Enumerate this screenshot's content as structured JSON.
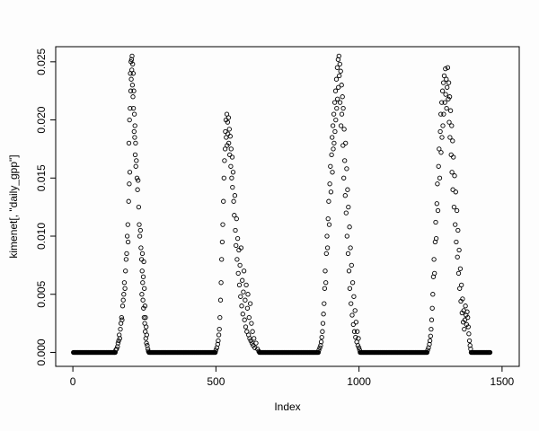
{
  "chart_data": {
    "type": "scatter",
    "title": "",
    "xlabel": "Index",
    "ylabel": "kimenet[, \"daily_gpp\"]",
    "xlim": [
      -60,
      1560
    ],
    "ylim": [
      -0.0012,
      0.0263
    ],
    "x_ticks": [
      0,
      500,
      1000,
      1500
    ],
    "x_tick_labels": [
      "0",
      "500",
      "1000",
      "1500"
    ],
    "y_ticks": [
      0,
      0.005,
      0.01,
      0.015,
      0.02,
      0.025
    ],
    "y_tick_labels": [
      "0.000",
      "0.005",
      "0.010",
      "0.015",
      "0.020",
      "0.025"
    ],
    "marker": "open-circle",
    "marker_color": "#000000",
    "grid": false,
    "legend": "none",
    "zero_runs": [
      {
        "from": 2,
        "to": 148,
        "step": 2,
        "y": 0
      },
      {
        "from": 266,
        "to": 498,
        "step": 2,
        "y": 0
      },
      {
        "from": 652,
        "to": 858,
        "step": 2,
        "y": 0
      },
      {
        "from": 1004,
        "to": 1238,
        "step": 2,
        "y": 0
      },
      {
        "from": 1392,
        "to": 1458,
        "step": 2,
        "y": 0
      }
    ],
    "points": [
      [
        150,
        0.0002
      ],
      [
        153,
        0.0003
      ],
      [
        156,
        0.0005
      ],
      [
        158,
        0.0008
      ],
      [
        160,
        0.001
      ],
      [
        162,
        0.0015
      ],
      [
        164,
        0.0012
      ],
      [
        166,
        0.002
      ],
      [
        168,
        0.0025
      ],
      [
        170,
        0.003
      ],
      [
        172,
        0.0028
      ],
      [
        174,
        0.004
      ],
      [
        176,
        0.0045
      ],
      [
        178,
        0.005
      ],
      [
        180,
        0.006
      ],
      [
        182,
        0.0055
      ],
      [
        184,
        0.007
      ],
      [
        186,
        0.008
      ],
      [
        188,
        0.0085
      ],
      [
        190,
        0.01
      ],
      [
        192,
        0.011
      ],
      [
        193,
        0.0095
      ],
      [
        195,
        0.013
      ],
      [
        196,
        0.018
      ],
      [
        197,
        0.0145
      ],
      [
        198,
        0.02
      ],
      [
        199,
        0.0155
      ],
      [
        200,
        0.021
      ],
      [
        201,
        0.024
      ],
      [
        202,
        0.0225
      ],
      [
        203,
        0.025
      ],
      [
        204,
        0.0235
      ],
      [
        205,
        0.0252
      ],
      [
        206,
        0.0243
      ],
      [
        207,
        0.0255
      ],
      [
        208,
        0.023
      ],
      [
        209,
        0.0248
      ],
      [
        210,
        0.022
      ],
      [
        211,
        0.024
      ],
      [
        212,
        0.021
      ],
      [
        213,
        0.0225
      ],
      [
        214,
        0.019
      ],
      [
        215,
        0.0205
      ],
      [
        216,
        0.0185
      ],
      [
        217,
        0.0195
      ],
      [
        218,
        0.017
      ],
      [
        219,
        0.018
      ],
      [
        220,
        0.016
      ],
      [
        222,
        0.0165
      ],
      [
        224,
        0.015
      ],
      [
        226,
        0.014
      ],
      [
        228,
        0.0148
      ],
      [
        230,
        0.0125
      ],
      [
        232,
        0.011
      ],
      [
        234,
        0.01
      ],
      [
        236,
        0.0105
      ],
      [
        238,
        0.009
      ],
      [
        240,
        0.008
      ],
      [
        241,
        0.005
      ],
      [
        242,
        0.007
      ],
      [
        243,
        0.0085
      ],
      [
        244,
        0.006
      ],
      [
        245,
        0.0045
      ],
      [
        246,
        0.0065
      ],
      [
        247,
        0.0038
      ],
      [
        248,
        0.0078
      ],
      [
        249,
        0.003
      ],
      [
        250,
        0.0055
      ],
      [
        251,
        0.0025
      ],
      [
        252,
        0.004
      ],
      [
        253,
        0.0018
      ],
      [
        254,
        0.003
      ],
      [
        255,
        0.0012
      ],
      [
        256,
        0.0022
      ],
      [
        257,
        0.0008
      ],
      [
        258,
        0.0015
      ],
      [
        260,
        0.0006
      ],
      [
        262,
        0.0003
      ],
      [
        264,
        0.0001
      ],
      [
        500,
        0.0002
      ],
      [
        503,
        0.0004
      ],
      [
        506,
        0.0007
      ],
      [
        508,
        0.001
      ],
      [
        510,
        0.0015
      ],
      [
        512,
        0.002
      ],
      [
        514,
        0.003
      ],
      [
        516,
        0.0045
      ],
      [
        518,
        0.006
      ],
      [
        520,
        0.008
      ],
      [
        522,
        0.0095
      ],
      [
        524,
        0.011
      ],
      [
        526,
        0.013
      ],
      [
        528,
        0.015
      ],
      [
        530,
        0.0165
      ],
      [
        532,
        0.0175
      ],
      [
        533,
        0.019
      ],
      [
        535,
        0.02
      ],
      [
        536,
        0.0185
      ],
      [
        538,
        0.0205
      ],
      [
        539,
        0.0178
      ],
      [
        541,
        0.0198
      ],
      [
        542,
        0.0188
      ],
      [
        544,
        0.0202
      ],
      [
        545,
        0.018
      ],
      [
        547,
        0.0192
      ],
      [
        548,
        0.017
      ],
      [
        550,
        0.0186
      ],
      [
        552,
        0.016
      ],
      [
        553,
        0.0175
      ],
      [
        555,
        0.015
      ],
      [
        557,
        0.0168
      ],
      [
        558,
        0.0142
      ],
      [
        560,
        0.0155
      ],
      [
        562,
        0.013
      ],
      [
        564,
        0.0118
      ],
      [
        566,
        0.0135
      ],
      [
        568,
        0.0105
      ],
      [
        570,
        0.0092
      ],
      [
        572,
        0.0115
      ],
      [
        574,
        0.008
      ],
      [
        576,
        0.0098
      ],
      [
        578,
        0.0068
      ],
      [
        580,
        0.0088
      ],
      [
        582,
        0.0058
      ],
      [
        584,
        0.0075
      ],
      [
        586,
        0.0048
      ],
      [
        588,
        0.009
      ],
      [
        590,
        0.004
      ],
      [
        592,
        0.0062
      ],
      [
        594,
        0.0033
      ],
      [
        596,
        0.0052
      ],
      [
        598,
        0.007
      ],
      [
        600,
        0.0028
      ],
      [
        602,
        0.0045
      ],
      [
        604,
        0.0022
      ],
      [
        606,
        0.0058
      ],
      [
        608,
        0.0018
      ],
      [
        610,
        0.0038
      ],
      [
        612,
        0.005
      ],
      [
        614,
        0.0015
      ],
      [
        616,
        0.003
      ],
      [
        618,
        0.0012
      ],
      [
        620,
        0.0042
      ],
      [
        622,
        0.001
      ],
      [
        624,
        0.0025
      ],
      [
        626,
        0.0008
      ],
      [
        628,
        0.0018
      ],
      [
        630,
        0.0006
      ],
      [
        633,
        0.0012
      ],
      [
        636,
        0.0004
      ],
      [
        640,
        0.0008
      ],
      [
        645,
        0.0003
      ],
      [
        650,
        0.0001
      ],
      [
        860,
        0.0002
      ],
      [
        863,
        0.0004
      ],
      [
        866,
        0.0006
      ],
      [
        868,
        0.0009
      ],
      [
        870,
        0.0013
      ],
      [
        872,
        0.0018
      ],
      [
        874,
        0.0025
      ],
      [
        876,
        0.0033
      ],
      [
        878,
        0.0042
      ],
      [
        880,
        0.0055
      ],
      [
        882,
        0.007
      ],
      [
        884,
        0.006
      ],
      [
        886,
        0.0085
      ],
      [
        888,
        0.01
      ],
      [
        890,
        0.009
      ],
      [
        892,
        0.0115
      ],
      [
        894,
        0.013
      ],
      [
        896,
        0.011
      ],
      [
        898,
        0.0145
      ],
      [
        900,
        0.016
      ],
      [
        902,
        0.0138
      ],
      [
        904,
        0.017
      ],
      [
        906,
        0.0185
      ],
      [
        907,
        0.0155
      ],
      [
        909,
        0.0195
      ],
      [
        910,
        0.0175
      ],
      [
        912,
        0.0205
      ],
      [
        913,
        0.018
      ],
      [
        915,
        0.0215
      ],
      [
        916,
        0.019
      ],
      [
        918,
        0.0225
      ],
      [
        919,
        0.02
      ],
      [
        921,
        0.0235
      ],
      [
        922,
        0.021
      ],
      [
        924,
        0.0245
      ],
      [
        925,
        0.0218
      ],
      [
        927,
        0.0252
      ],
      [
        928,
        0.0228
      ],
      [
        930,
        0.0255
      ],
      [
        931,
        0.0238
      ],
      [
        933,
        0.0248
      ],
      [
        934,
        0.0215
      ],
      [
        936,
        0.0242
      ],
      [
        937,
        0.0195
      ],
      [
        939,
        0.023
      ],
      [
        940,
        0.0205
      ],
      [
        942,
        0.022
      ],
      [
        944,
        0.0178
      ],
      [
        945,
        0.021
      ],
      [
        947,
        0.015
      ],
      [
        948,
        0.0192
      ],
      [
        950,
        0.0165
      ],
      [
        952,
        0.0135
      ],
      [
        953,
        0.018
      ],
      [
        955,
        0.012
      ],
      [
        957,
        0.0158
      ],
      [
        958,
        0.01
      ],
      [
        960,
        0.014
      ],
      [
        962,
        0.0085
      ],
      [
        963,
        0.0125
      ],
      [
        965,
        0.007
      ],
      [
        967,
        0.0108
      ],
      [
        968,
        0.0055
      ],
      [
        970,
        0.009
      ],
      [
        972,
        0.0042
      ],
      [
        974,
        0.0075
      ],
      [
        976,
        0.0032
      ],
      [
        978,
        0.006
      ],
      [
        980,
        0.0024
      ],
      [
        982,
        0.0048
      ],
      [
        984,
        0.0018
      ],
      [
        986,
        0.0036
      ],
      [
        988,
        0.0013
      ],
      [
        990,
        0.0026
      ],
      [
        992,
        0.0009
      ],
      [
        994,
        0.0018
      ],
      [
        996,
        0.0006
      ],
      [
        998,
        0.0012
      ],
      [
        1000,
        0.0004
      ],
      [
        1002,
        0.0002
      ],
      [
        1240,
        0.0002
      ],
      [
        1243,
        0.0004
      ],
      [
        1246,
        0.0007
      ],
      [
        1248,
        0.001
      ],
      [
        1250,
        0.0014
      ],
      [
        1252,
        0.002
      ],
      [
        1254,
        0.0028
      ],
      [
        1256,
        0.0038
      ],
      [
        1258,
        0.005
      ],
      [
        1260,
        0.0065
      ],
      [
        1262,
        0.008
      ],
      [
        1264,
        0.0068
      ],
      [
        1266,
        0.0095
      ],
      [
        1268,
        0.0112
      ],
      [
        1270,
        0.0098
      ],
      [
        1272,
        0.0128
      ],
      [
        1274,
        0.0145
      ],
      [
        1276,
        0.0122
      ],
      [
        1278,
        0.016
      ],
      [
        1280,
        0.0175
      ],
      [
        1282,
        0.015
      ],
      [
        1284,
        0.019
      ],
      [
        1286,
        0.0205
      ],
      [
        1287,
        0.0172
      ],
      [
        1289,
        0.0215
      ],
      [
        1290,
        0.0185
      ],
      [
        1292,
        0.0225
      ],
      [
        1293,
        0.0195
      ],
      [
        1295,
        0.0232
      ],
      [
        1296,
        0.0205
      ],
      [
        1298,
        0.0238
      ],
      [
        1300,
        0.0215
      ],
      [
        1302,
        0.0244
      ],
      [
        1303,
        0.0222
      ],
      [
        1305,
        0.0235
      ],
      [
        1306,
        0.021
      ],
      [
        1308,
        0.0228
      ],
      [
        1310,
        0.0245
      ],
      [
        1312,
        0.0218
      ],
      [
        1314,
        0.0232
      ],
      [
        1315,
        0.0198
      ],
      [
        1317,
        0.022
      ],
      [
        1318,
        0.0185
      ],
      [
        1320,
        0.0208
      ],
      [
        1322,
        0.017
      ],
      [
        1324,
        0.0195
      ],
      [
        1325,
        0.0155
      ],
      [
        1327,
        0.0182
      ],
      [
        1328,
        0.014
      ],
      [
        1330,
        0.0168
      ],
      [
        1332,
        0.0125
      ],
      [
        1334,
        0.0152
      ],
      [
        1336,
        0.011
      ],
      [
        1338,
        0.0138
      ],
      [
        1340,
        0.0095
      ],
      [
        1342,
        0.0122
      ],
      [
        1344,
        0.0082
      ],
      [
        1346,
        0.0105
      ],
      [
        1348,
        0.0068
      ],
      [
        1350,
        0.0088
      ],
      [
        1352,
        0.0055
      ],
      [
        1354,
        0.0072
      ],
      [
        1356,
        0.0044
      ],
      [
        1358,
        0.0058
      ],
      [
        1360,
        0.0034
      ],
      [
        1362,
        0.0046
      ],
      [
        1364,
        0.0026
      ],
      [
        1366,
        0.0036
      ],
      [
        1368,
        0.002
      ],
      [
        1370,
        0.0028
      ],
      [
        1372,
        0.004
      ],
      [
        1374,
        0.0032
      ],
      [
        1376,
        0.0024
      ],
      [
        1378,
        0.0035
      ],
      [
        1380,
        0.003
      ],
      [
        1382,
        0.0022
      ],
      [
        1384,
        0.0016
      ],
      [
        1386,
        0.001
      ],
      [
        1388,
        0.0006
      ],
      [
        1390,
        0.0003
      ]
    ]
  }
}
